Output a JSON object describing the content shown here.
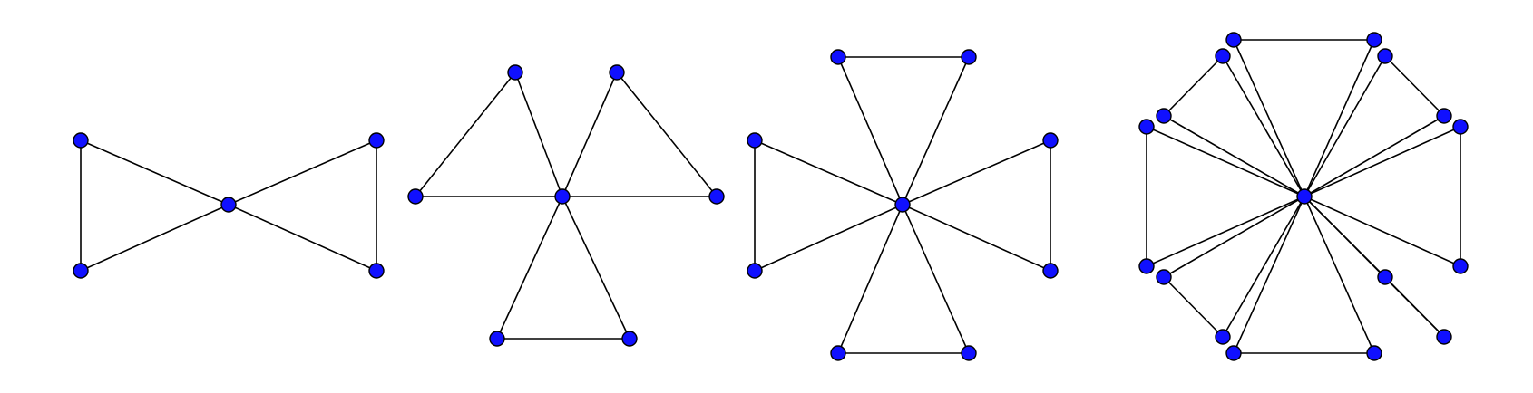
{
  "theme": {
    "node_color": "#1010ff",
    "edge_color": "#000000",
    "background": "#ffffff"
  },
  "graphs": [
    {
      "name": "friendship-graph-f2",
      "triangles": 2
    },
    {
      "name": "friendship-graph-f3",
      "triangles": 3
    },
    {
      "name": "friendship-graph-f4",
      "triangles": 4
    },
    {
      "name": "friendship-graph-f8",
      "triangles": 8
    }
  ]
}
